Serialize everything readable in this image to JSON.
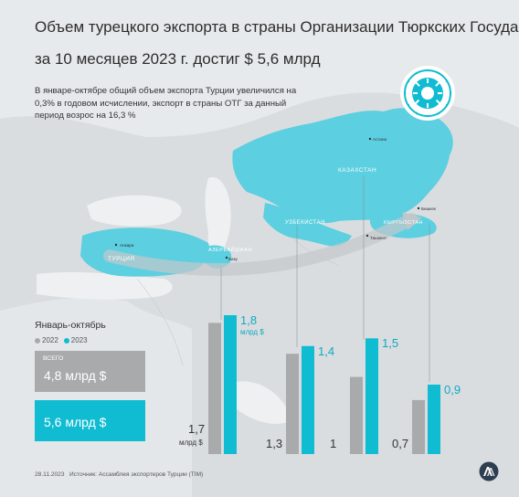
{
  "title_line1": "Объем турецкого экспорта в страны Организации Тюркских Государств",
  "title_line2": "за 10 месяцев 2023 г. достиг $ 5,6 млрд",
  "description": "В январе-октябре общий объем экспорта Турции увеличился на 0,3% в годовом исчислении, экспорт в страны ОТГ за данный период возрос на 16,3 %",
  "period_title": "Январь-октябрь",
  "legend": [
    {
      "label": "2022",
      "color": "#a9aaab"
    },
    {
      "label": "2023",
      "color": "#10bcd2"
    }
  ],
  "totals": {
    "caption": "ВСЕГО",
    "value_2022": "4,8 млрд $",
    "value_2023": "5,6 млрд $"
  },
  "countries": {
    "turkey": "ТУРЦИЯ",
    "azerbaijan": "АЗЕРБАЙДЖАН",
    "uzbekistan": "УЗБЕКИСТАН",
    "kazakhstan": "КАЗАХСТАН",
    "kyrgyzstan": "КЫРГЫЗСТАН"
  },
  "cities": {
    "ankara": "Анкара",
    "baku": "Баку",
    "tashkent": "Ташкент",
    "astana": "Астана",
    "bishkek": "Бишкек"
  },
  "chart_data": {
    "type": "bar",
    "categories": [
      "Азербайджан",
      "Узбекистан",
      "Казахстан",
      "Кыргызстан"
    ],
    "series": [
      {
        "name": "2022",
        "values": [
          1.7,
          1.3,
          1.0,
          0.7
        ],
        "labels": [
          "1,7",
          "1,3",
          "1",
          "0,7"
        ],
        "color": "#a9aaab"
      },
      {
        "name": "2023",
        "values": [
          1.8,
          1.4,
          1.5,
          0.9
        ],
        "labels": [
          "1,8",
          "1,4",
          "1,5",
          "0,9"
        ],
        "color": "#10bcd2"
      }
    ],
    "unit_label": "млрд $",
    "ylim": [
      0,
      1.8
    ]
  },
  "footer": {
    "date": "28.11.2023",
    "source": "Источник: Ассамблея экспортеров Турции (TIM)"
  },
  "colors": {
    "accent": "#10bcd2",
    "gray": "#a9aaab",
    "map_land": "#d8dcdf",
    "map_member": "#5ccfe0"
  }
}
